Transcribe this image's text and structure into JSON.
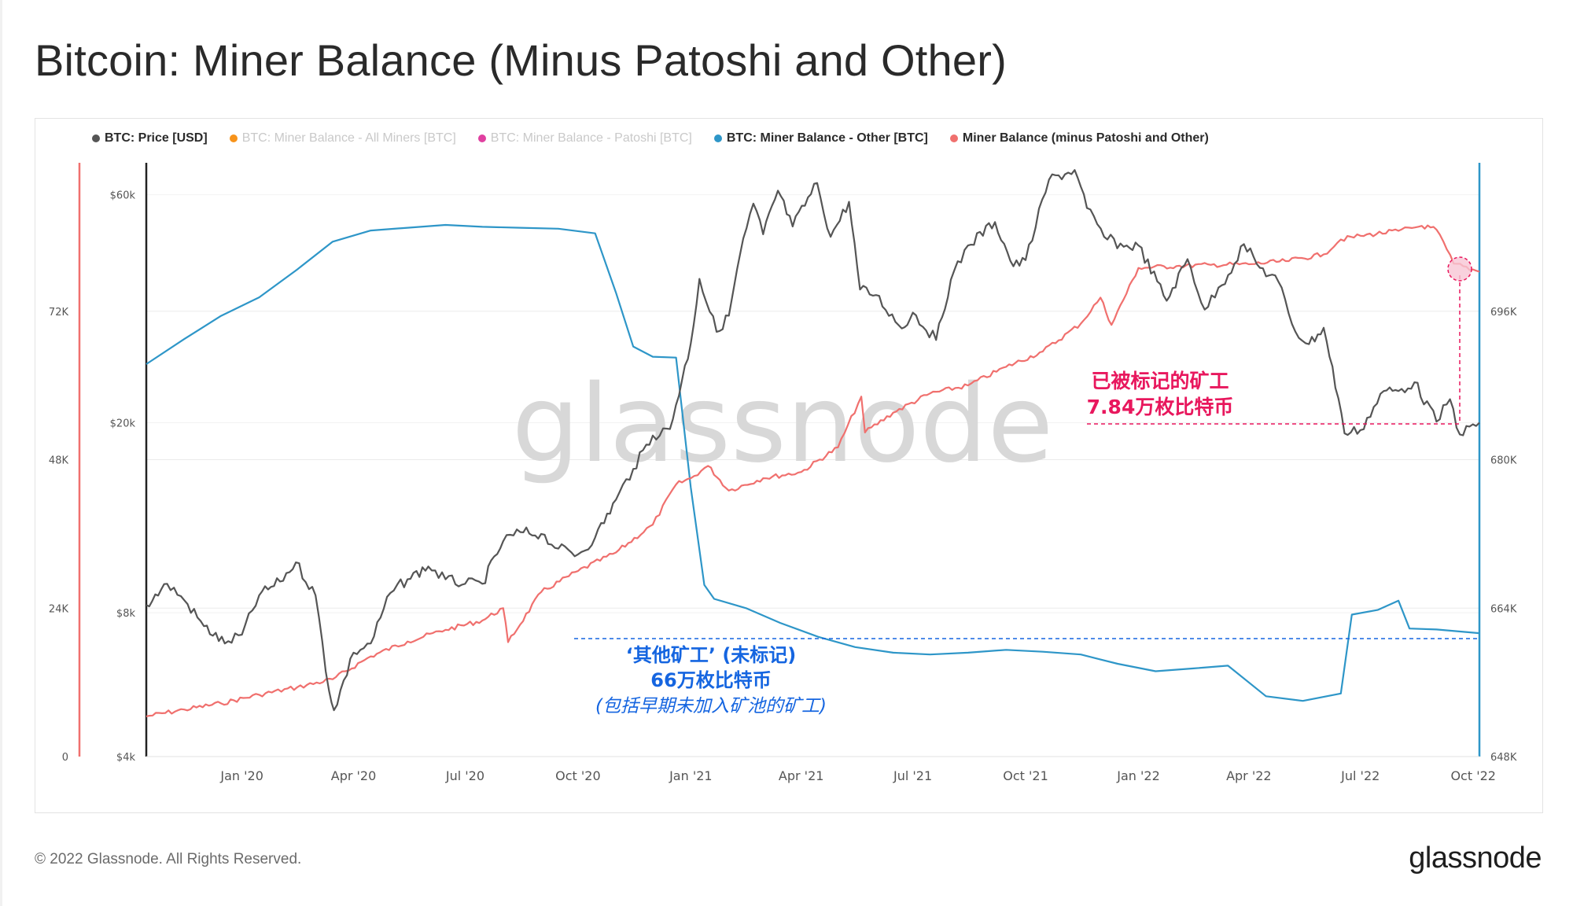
{
  "page": {
    "title": "Bitcoin: Miner Balance (Minus Patoshi and Other)",
    "copyright": "© 2022 Glassnode. All Rights Reserved.",
    "logo_text": "glassnode"
  },
  "colors": {
    "price": "#555555",
    "miner_all": "#f7931a",
    "patoshi": "#e040a0",
    "other": "#2e96c8",
    "minus": "#f0706e",
    "annotation_pink": "#e8175d",
    "annotation_blue": "#1565e0"
  },
  "legend": [
    {
      "label": "BTC: Price [USD]",
      "color": "#555555",
      "active": true
    },
    {
      "label": "BTC: Miner Balance - All Miners [BTC]",
      "color": "#f7931a",
      "active": false
    },
    {
      "label": "BTC: Miner Balance - Patoshi [BTC]",
      "color": "#e040a0",
      "active": false
    },
    {
      "label": "BTC: Miner Balance - Other [BTC]",
      "color": "#2e96c8",
      "active": true
    },
    {
      "label": "Miner Balance (minus Patoshi and Other)",
      "color": "#f0706e",
      "active": true
    }
  ],
  "annotations": {
    "tagged_line1": "已被标记的矿工",
    "tagged_line2": "7.84万枚比特币",
    "other_line1": "‘其他矿工’ (未标记)",
    "other_line2": "66万枚比特币",
    "other_line3": "(包括早期未加入矿池的矿工)"
  },
  "watermark": "glassnode",
  "chart_data": {
    "type": "line",
    "x_range": [
      "2019-10-15",
      "2022-10-06"
    ],
    "x_ticks": [
      "Jan '20",
      "Apr '20",
      "Jul '20",
      "Oct '20",
      "Jan '21",
      "Apr '21",
      "Jul '21",
      "Oct '21",
      "Jan '22",
      "Apr '22",
      "Jul '22",
      "Oct '22"
    ],
    "axes": {
      "left_outer": {
        "ticks": [
          "0",
          "24K",
          "48K",
          "72K"
        ],
        "tick_values": [
          0,
          24000,
          48000,
          72000
        ],
        "range": [
          0,
          96000
        ]
      },
      "left_inner_price": {
        "scale": "log",
        "ticks": [
          "$4k",
          "$8k",
          "$20k",
          "$60k"
        ],
        "tick_values": [
          4000,
          8000,
          20000,
          60000
        ],
        "range": [
          4000,
          70000
        ]
      },
      "right": {
        "ticks": [
          "648K",
          "664K",
          "680K",
          "696K"
        ],
        "tick_values": [
          648000,
          664000,
          680000,
          696000
        ],
        "range": [
          648000,
          712000
        ]
      }
    },
    "grid": true,
    "legend_position": "top-left",
    "series": [
      {
        "name": "BTC: Price [USD]",
        "axis": "left_inner_price",
        "x": [
          "2019-10-15",
          "2019-11-01",
          "2019-11-15",
          "2019-12-01",
          "2019-12-18",
          "2020-01-01",
          "2020-01-15",
          "2020-02-01",
          "2020-02-14",
          "2020-03-01",
          "2020-03-12",
          "2020-03-16",
          "2020-04-01",
          "2020-04-15",
          "2020-05-01",
          "2020-05-15",
          "2020-06-01",
          "2020-06-15",
          "2020-07-01",
          "2020-07-15",
          "2020-08-01",
          "2020-08-15",
          "2020-09-01",
          "2020-09-15",
          "2020-10-01",
          "2020-10-15",
          "2020-11-01",
          "2020-11-15",
          "2020-12-01",
          "2020-12-15",
          "2021-01-01",
          "2021-01-08",
          "2021-01-22",
          "2021-02-01",
          "2021-02-10",
          "2021-02-21",
          "2021-03-01",
          "2021-03-13",
          "2021-03-25",
          "2021-04-14",
          "2021-04-25",
          "2021-05-10",
          "2021-05-19",
          "2021-06-01",
          "2021-06-22",
          "2021-07-01",
          "2021-07-20",
          "2021-08-01",
          "2021-08-15",
          "2021-09-06",
          "2021-09-21",
          "2021-10-01",
          "2021-10-20",
          "2021-11-10",
          "2021-11-20",
          "2021-12-04",
          "2021-12-20",
          "2022-01-01",
          "2022-01-24",
          "2022-02-10",
          "2022-02-24",
          "2022-03-10",
          "2022-03-28",
          "2022-04-10",
          "2022-04-25",
          "2022-05-09",
          "2022-05-20",
          "2022-06-01",
          "2022-06-13",
          "2022-06-18",
          "2022-07-01",
          "2022-07-20",
          "2022-08-01",
          "2022-08-14",
          "2022-09-01",
          "2022-09-12",
          "2022-09-20",
          "2022-10-06"
        ],
        "values": [
          8300,
          9200,
          8500,
          7500,
          6900,
          7200,
          8700,
          9300,
          10200,
          8700,
          5500,
          5000,
          6600,
          6900,
          8800,
          9400,
          10000,
          9400,
          9200,
          9200,
          11300,
          11800,
          11700,
          10900,
          10600,
          11500,
          13800,
          16000,
          18800,
          19400,
          29300,
          40000,
          31000,
          33500,
          44800,
          57500,
          49600,
          61200,
          51500,
          63500,
          49000,
          58000,
          38000,
          37000,
          31500,
          34000,
          29800,
          39800,
          47000,
          52600,
          42500,
          43800,
          64500,
          67600,
          56300,
          49000,
          46700,
          47000,
          36000,
          44000,
          34500,
          38800,
          47300,
          42200,
          39500,
          31000,
          29200,
          31600,
          22500,
          19000,
          19300,
          23300,
          23300,
          24300,
          20100,
          22400,
          18900,
          20000
        ]
      },
      {
        "name": "BTC: Miner Balance - Other [BTC]",
        "axis": "right",
        "x": [
          "2019-10-15",
          "2019-11-15",
          "2019-12-15",
          "2020-01-15",
          "2020-02-15",
          "2020-03-15",
          "2020-04-15",
          "2020-05-15",
          "2020-06-15",
          "2020-07-15",
          "2020-08-15",
          "2020-09-15",
          "2020-10-15",
          "2020-11-01",
          "2020-11-15",
          "2020-12-01",
          "2020-12-20",
          "2021-01-01",
          "2021-01-12",
          "2021-01-20",
          "2021-02-15",
          "2021-03-15",
          "2021-04-15",
          "2021-05-15",
          "2021-06-15",
          "2021-07-15",
          "2021-08-15",
          "2021-09-15",
          "2021-10-15",
          "2021-11-15",
          "2021-12-15",
          "2022-01-15",
          "2022-02-15",
          "2022-03-15",
          "2022-04-15",
          "2022-05-15",
          "2022-06-15",
          "2022-06-24",
          "2022-07-15",
          "2022-08-01",
          "2022-08-10",
          "2022-09-01",
          "2022-10-06"
        ],
        "values": [
          690300,
          693000,
          695500,
          697500,
          700500,
          703500,
          704700,
          705000,
          705300,
          705100,
          705000,
          704900,
          704400,
          698000,
          692200,
          691100,
          691000,
          677000,
          666500,
          665000,
          664000,
          662400,
          660900,
          659800,
          659200,
          659000,
          659200,
          659500,
          659300,
          659000,
          658000,
          657200,
          657500,
          657800,
          654500,
          654000,
          654800,
          663300,
          663800,
          664800,
          661800,
          661700,
          661300
        ]
      },
      {
        "name": "Miner Balance (minus Patoshi and Other)",
        "axis": "left_outer",
        "x": [
          "2019-10-15",
          "2019-11-15",
          "2019-12-15",
          "2020-01-15",
          "2020-02-15",
          "2020-03-15",
          "2020-04-15",
          "2020-05-15",
          "2020-06-15",
          "2020-07-15",
          "2020-08-01",
          "2020-08-05",
          "2020-09-01",
          "2020-10-01",
          "2020-11-01",
          "2020-12-01",
          "2020-12-20",
          "2021-01-01",
          "2021-01-15",
          "2021-02-01",
          "2021-03-01",
          "2021-04-01",
          "2021-05-01",
          "2021-05-20",
          "2021-05-23",
          "2021-06-15",
          "2021-07-15",
          "2021-08-15",
          "2021-09-15",
          "2021-10-15",
          "2021-11-15",
          "2021-12-01",
          "2021-12-10",
          "2022-01-01",
          "2022-02-01",
          "2022-03-01",
          "2022-04-01",
          "2022-05-01",
          "2022-06-01",
          "2022-06-15",
          "2022-07-01",
          "2022-08-01",
          "2022-08-20",
          "2022-09-01",
          "2022-09-15",
          "2022-10-06"
        ],
        "values": [
          6500,
          7600,
          8600,
          10000,
          11200,
          12500,
          16200,
          18600,
          20500,
          22000,
          24000,
          18500,
          26600,
          30000,
          33000,
          37500,
          44000,
          45000,
          47000,
          43000,
          45000,
          46000,
          50000,
          58200,
          52400,
          55600,
          58700,
          60000,
          63000,
          65500,
          70000,
          74200,
          69800,
          79000,
          79300,
          79500,
          79600,
          80100,
          81200,
          83600,
          84200,
          85000,
          85800,
          85200,
          79700,
          78400
        ]
      }
    ]
  }
}
